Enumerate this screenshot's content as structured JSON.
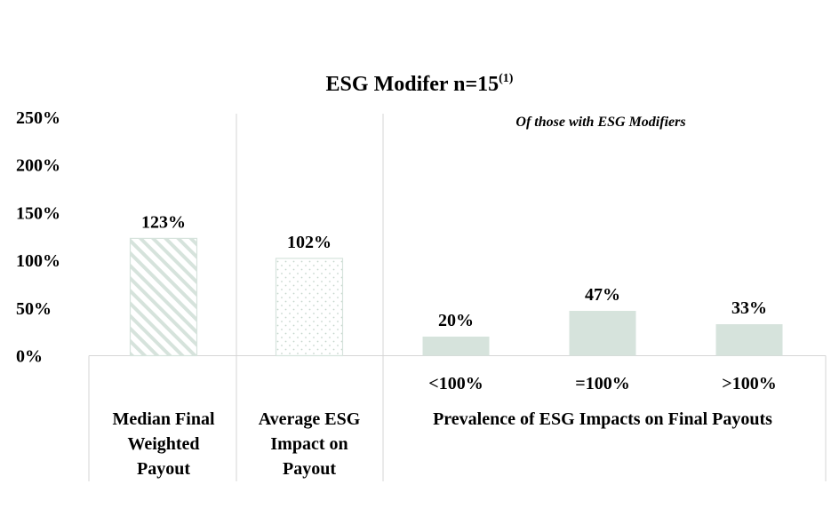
{
  "chart_data": {
    "type": "bar",
    "title": "ESG Modifer n=15",
    "title_superscript": "(1)",
    "annotation": "Of those with ESG Modifiers",
    "ylim": [
      0,
      250
    ],
    "y_ticks": [
      "250%",
      "200%",
      "150%",
      "100%",
      "50%",
      "0%"
    ],
    "y_tick_values": [
      250,
      200,
      150,
      100,
      50,
      0
    ],
    "grid": false,
    "bar_color": "#d6e3dc",
    "bars": [
      {
        "key": "median",
        "category": "",
        "group": "Median Final Weighted Payout",
        "value": 123,
        "label": "123%",
        "fill": "hatch"
      },
      {
        "key": "average",
        "category": "",
        "group": "Average ESG Impact on Payout",
        "value": 102,
        "label": "102%",
        "fill": "dots"
      },
      {
        "key": "lt100",
        "category": "<100%",
        "group": "Prevalence of ESG Impacts on Final Payouts",
        "value": 20,
        "label": "20%",
        "fill": "solid"
      },
      {
        "key": "eq100",
        "category": "=100%",
        "group": "Prevalence of ESG Impacts on Final Payouts",
        "value": 47,
        "label": "47%",
        "fill": "solid"
      },
      {
        "key": "gt100",
        "category": ">100%",
        "group": "Prevalence of ESG Impacts on Final Payouts",
        "value": 33,
        "label": "33%",
        "fill": "solid"
      }
    ],
    "groups": [
      {
        "key": "median",
        "lines": [
          "Median Final",
          "Weighted",
          "Payout"
        ]
      },
      {
        "key": "average",
        "lines": [
          "Average ESG",
          "Impact on",
          "Payout"
        ]
      },
      {
        "key": "prevalence",
        "lines": [
          "Prevalence of ESG Impacts on Final Payouts"
        ]
      }
    ]
  }
}
